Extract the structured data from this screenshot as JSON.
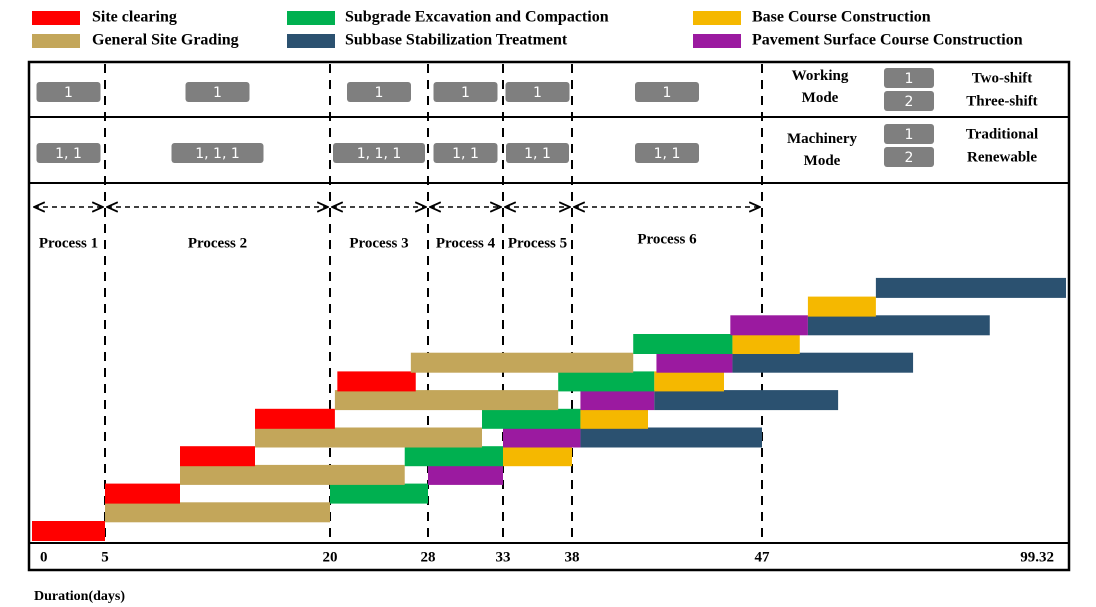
{
  "chart_data": {
    "type": "gantt",
    "series": [
      {
        "name": "Site clearing",
        "color": "#ff0000"
      },
      {
        "name": "General Site Grading",
        "color": "#c3a65a"
      },
      {
        "name": "Subgrade Excavation and Compaction",
        "color": "#00b050"
      },
      {
        "name": "Subbase Stabilization Treatment",
        "color": "#2b5170"
      },
      {
        "name": "Base Course Construction",
        "color": "#f5b800"
      },
      {
        "name": "Pavement Surface Course Construction",
        "color": "#9b1aa0"
      }
    ],
    "processes": [
      {
        "label": "Process 1",
        "working_mode": 1,
        "machinery_mode": "1, 1"
      },
      {
        "label": "Process 2",
        "working_mode": 1,
        "machinery_mode": "1, 1, 1"
      },
      {
        "label": "Process 3",
        "working_mode": 1,
        "machinery_mode": "1, 1, 1"
      },
      {
        "label": "Process 4",
        "working_mode": 1,
        "machinery_mode": "1, 1"
      },
      {
        "label": "Process 5",
        "working_mode": 1,
        "machinery_mode": "1, 1"
      },
      {
        "label": "Process 6",
        "working_mode": 1,
        "machinery_mode": "1, 1"
      }
    ],
    "working_mode": {
      "title": "Working Mode",
      "options": [
        {
          "code": 1,
          "label": "Two-shift"
        },
        {
          "code": 2,
          "label": "Three-shift"
        }
      ]
    },
    "machinery_mode": {
      "title": "Machinery Mode",
      "options": [
        {
          "code": 1,
          "label": "Traditional"
        },
        {
          "code": 2,
          "label": "Renewable"
        }
      ]
    },
    "xlabel": "Duration(days)",
    "xlim": [
      0,
      99.32
    ],
    "xticks": [
      0,
      5,
      20,
      28,
      33,
      38,
      47,
      99.32
    ],
    "rows": [
      [
        {
          "series": 0,
          "start": 0,
          "end": 5
        }
      ],
      [
        {
          "series": 1,
          "start": 5,
          "end": 20
        }
      ],
      [
        {
          "series": 0,
          "start": 5,
          "end": 10
        },
        {
          "series": 2,
          "start": 20,
          "end": 28
        }
      ],
      [
        {
          "series": 1,
          "start": 10,
          "end": 26.1
        },
        {
          "series": 5,
          "start": 28,
          "end": 33
        }
      ],
      [
        {
          "series": 0,
          "start": 10,
          "end": 15
        },
        {
          "series": 2,
          "start": 26.1,
          "end": 33
        },
        {
          "series": 4,
          "start": 33,
          "end": 38
        }
      ],
      [
        {
          "series": 1,
          "start": 15,
          "end": 31.6
        },
        {
          "series": 5,
          "start": 33,
          "end": 38.4
        },
        {
          "series": 3,
          "start": 38.4,
          "end": 47
        }
      ],
      [
        {
          "series": 0,
          "start": 15,
          "end": 20.4
        },
        {
          "series": 2,
          "start": 31.6,
          "end": 38.4
        },
        {
          "series": 4,
          "start": 38.4,
          "end": 41.6
        }
      ],
      [
        {
          "series": 1,
          "start": 20.4,
          "end": 37
        },
        {
          "series": 5,
          "start": 38.4,
          "end": 41.9
        },
        {
          "series": 3,
          "start": 41.9,
          "end": 60.1
        }
      ],
      [
        {
          "series": 0,
          "start": 20.6,
          "end": 27
        },
        {
          "series": 2,
          "start": 37,
          "end": 41.9
        },
        {
          "series": 4,
          "start": 41.9,
          "end": 45.2
        }
      ],
      [
        {
          "series": 1,
          "start": 26.6,
          "end": 40.9
        },
        {
          "series": 5,
          "start": 42,
          "end": 45.6
        },
        {
          "series": 3,
          "start": 45.6,
          "end": 73
        }
      ],
      [
        {
          "series": 2,
          "start": 40.9,
          "end": 45.6
        },
        {
          "series": 4,
          "start": 45.6,
          "end": 53.5
        }
      ],
      [
        {
          "series": 5,
          "start": 45.5,
          "end": 54.9
        },
        {
          "series": 3,
          "start": 54.9,
          "end": 86.2
        }
      ],
      [
        {
          "series": 4,
          "start": 54.9,
          "end": 66.6
        }
      ],
      [
        {
          "series": 3,
          "start": 66.6,
          "end": 99.32
        }
      ]
    ]
  }
}
